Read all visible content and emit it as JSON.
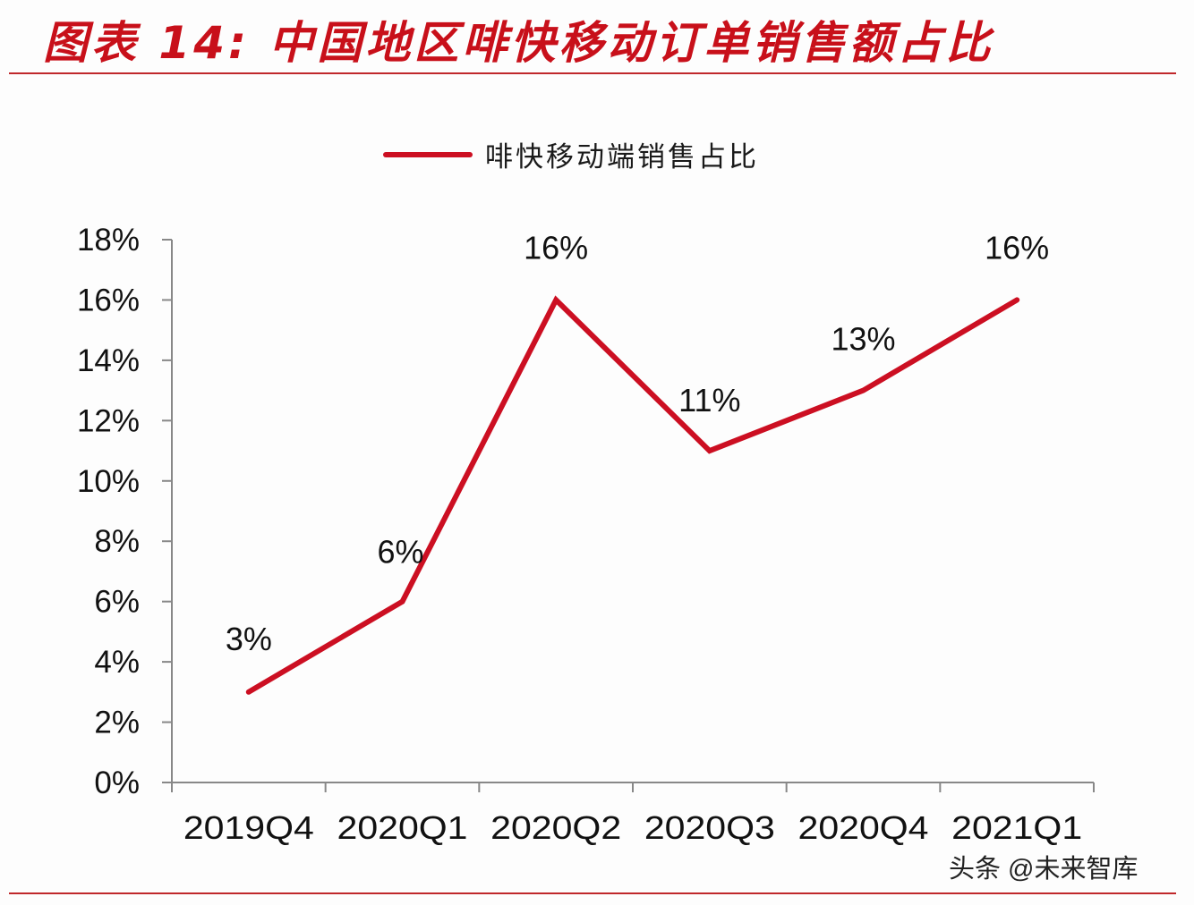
{
  "header": {
    "title": "图表 14:  中国地区啡快移动订单销售额占比"
  },
  "legend": {
    "label": "啡快移动端销售占比",
    "color": "#cc0f22"
  },
  "watermark": "头条 @未来智库",
  "colors": {
    "title": "#c8101a",
    "rule": "#c0282b",
    "series": "#cc0f22",
    "axis": "#888888"
  },
  "chart_data": {
    "type": "line",
    "title": "图表 14:  中国地区啡快移动订单销售额占比",
    "xlabel": "",
    "ylabel": "",
    "categories": [
      "2019Q4",
      "2020Q1",
      "2020Q2",
      "2020Q3",
      "2020Q4",
      "2021Q1"
    ],
    "series": [
      {
        "name": "啡快移动端销售占比",
        "values": [
          3,
          6,
          16,
          11,
          13,
          16
        ],
        "labels": [
          "3%",
          "6%",
          "16%",
          "11%",
          "13%",
          "16%"
        ],
        "color": "#cc0f22"
      }
    ],
    "ylim": [
      0,
      18
    ],
    "yticks": [
      "0%",
      "2%",
      "4%",
      "6%",
      "8%",
      "10%",
      "12%",
      "14%",
      "16%",
      "18%"
    ],
    "grid": false,
    "legend_position": "top"
  }
}
